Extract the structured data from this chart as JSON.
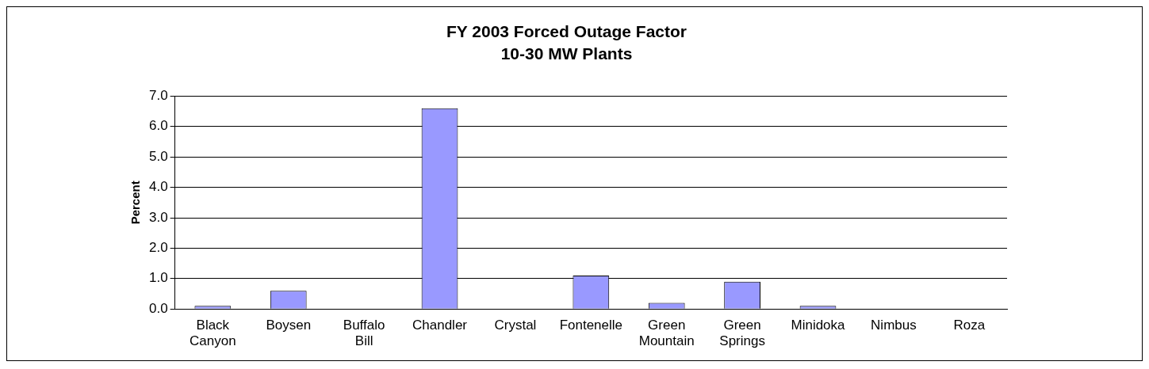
{
  "chart_data": {
    "type": "bar",
    "title": "FY 2003 Forced Outage Factor",
    "subtitle": "10-30 MW Plants",
    "ylabel": "Percent",
    "categories": [
      "Black Canyon",
      "Boysen",
      "Buffalo Bill",
      "Chandler",
      "Crystal",
      "Fontenelle",
      "Green Mountain",
      "Green Springs",
      "Minidoka",
      "Nimbus",
      "Roza"
    ],
    "values": [
      0.1,
      0.6,
      0.0,
      6.6,
      0.0,
      1.1,
      0.2,
      0.9,
      0.1,
      0.0,
      0.0
    ],
    "color": "#9999ff",
    "ylim": [
      0,
      7
    ],
    "yticks": [
      {
        "value": 0,
        "label": "0.0"
      },
      {
        "value": 1,
        "label": "1.0"
      },
      {
        "value": 2,
        "label": "2.0"
      },
      {
        "value": 3,
        "label": "3.0"
      },
      {
        "value": 4,
        "label": "4.0"
      },
      {
        "value": 5,
        "label": "5.0"
      },
      {
        "value": 6,
        "label": "6.0"
      },
      {
        "value": 7,
        "label": "7.0"
      }
    ],
    "grid": "y",
    "legend": false
  }
}
